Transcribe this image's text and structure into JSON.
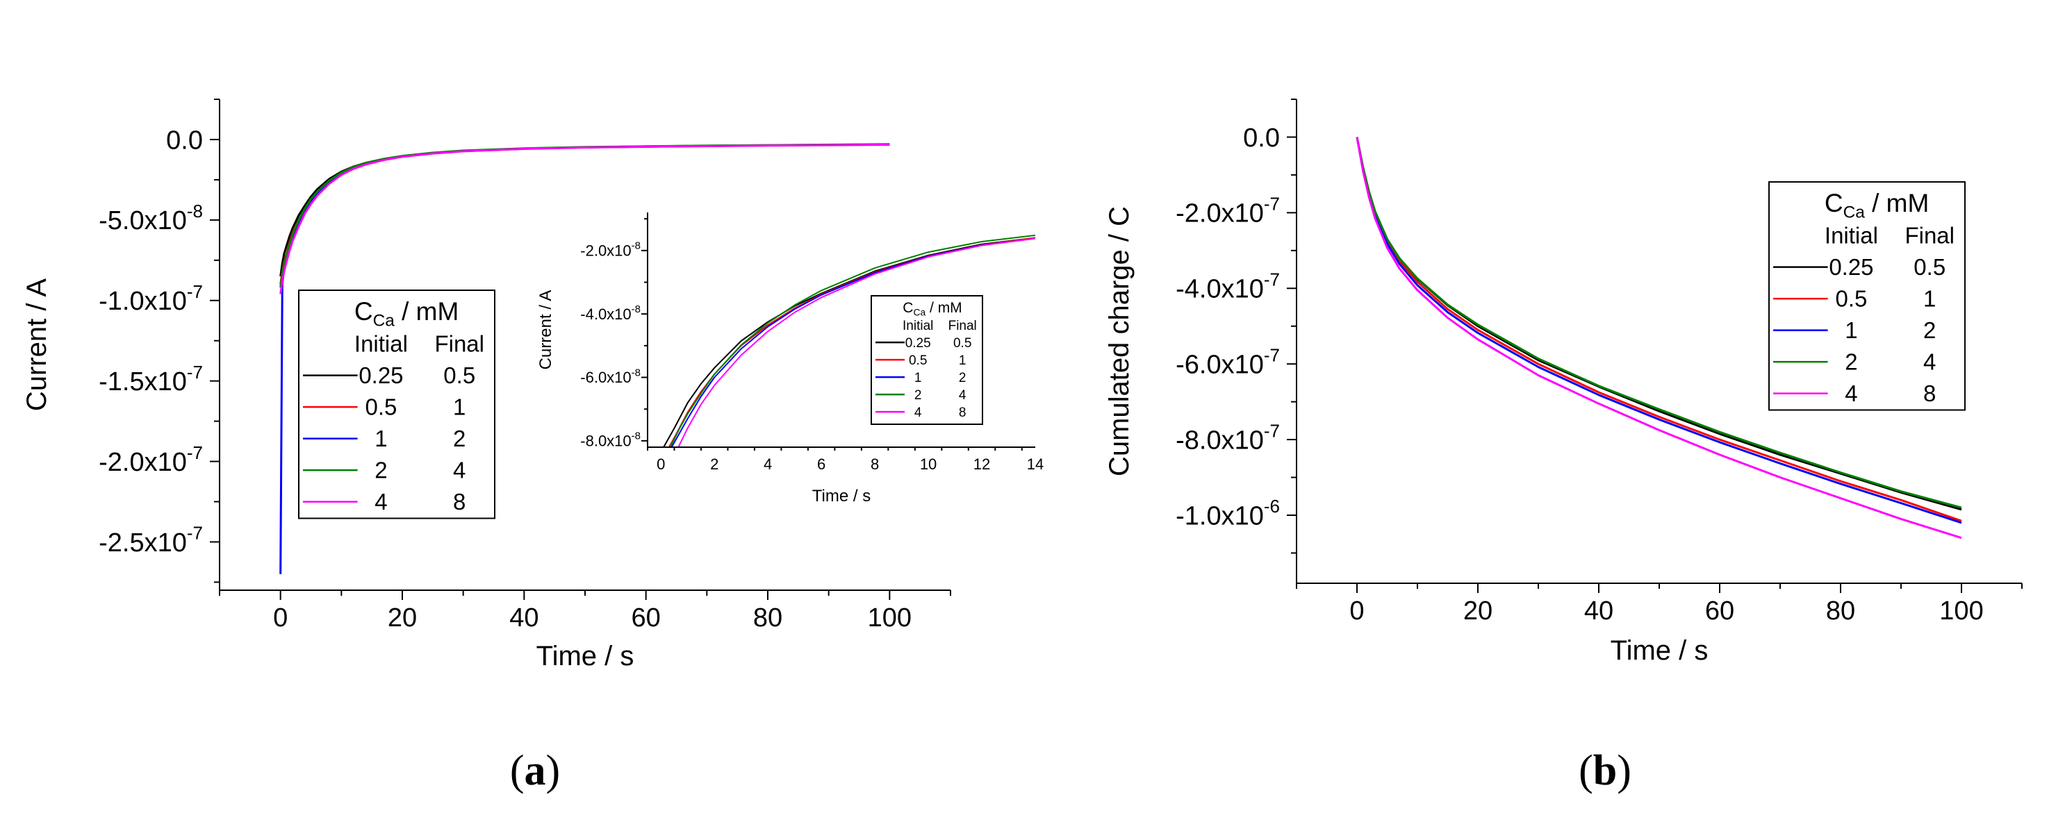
{
  "panels": {
    "a": {
      "label_open": "(",
      "label_letter": "a",
      "label_close": ")"
    },
    "b": {
      "label_open": "(",
      "label_letter": "b",
      "label_close": ")"
    }
  },
  "series_style": {
    "names": [
      "0.25 mM → 0.5 mM",
      "0.5 mM → 1 mM",
      "1 mM → 2 mM",
      "2 mM → 4 mM",
      "4 mM → 8 mM"
    ],
    "colors": [
      "#000000",
      "#ff0000",
      "#0000ff",
      "#008000",
      "#ff00ff"
    ]
  },
  "legend": {
    "title_main": "C",
    "title_sub": "Ca",
    "title_unit": " / mM",
    "col_initial": "Initial",
    "col_final": "Final",
    "initial": [
      "0.25",
      "0.5",
      "1",
      "2",
      "4"
    ],
    "final": [
      "0.5",
      "1",
      "2",
      "4",
      "8"
    ]
  },
  "chart_data": [
    {
      "id": "a-main",
      "type": "line",
      "title": "",
      "xlabel": "Time / s",
      "ylabel": "Current / A",
      "xlim": [
        -10,
        110
      ],
      "ylim": [
        -2.8e-07,
        2.5e-08
      ],
      "xticks": [
        0,
        20,
        40,
        60,
        80,
        100
      ],
      "xtick_labels": [
        "0",
        "20",
        "40",
        "60",
        "80",
        "100"
      ],
      "yticks": [
        0,
        -5e-08,
        -1e-07,
        -1.5e-07,
        -2e-07,
        -2.5e-07
      ],
      "ytick_labels": [
        {
          "m": "0.0",
          "e": ""
        },
        {
          "m": "-5.0x10",
          "e": "-8"
        },
        {
          "m": "-1.0x10",
          "e": "-7"
        },
        {
          "m": "-1.5x10",
          "e": "-7"
        },
        {
          "m": "-2.0x10",
          "e": "-7"
        },
        {
          "m": "-2.5x10",
          "e": "-7"
        }
      ],
      "x": [
        0,
        0.3,
        0.6,
        1,
        1.5,
        2,
        3,
        4,
        5,
        6,
        8,
        10,
        12,
        14,
        17,
        20,
        25,
        30,
        40,
        50,
        60,
        70,
        80,
        90,
        100
      ],
      "series": [
        {
          "name": "0.25 mM → 0.5 mM",
          "values": [
            -8.5e-08,
            -7.7e-08,
            -7.1e-08,
            -6.6e-08,
            -6e-08,
            -5.5e-08,
            -4.7e-08,
            -4.1e-08,
            -3.55e-08,
            -3.1e-08,
            -2.45e-08,
            -2e-08,
            -1.68e-08,
            -1.45e-08,
            -1.2e-08,
            -1.03e-08,
            -8.3e-09,
            -7e-09,
            -5.6e-09,
            -4.8e-09,
            -4.3e-09,
            -3.9e-09,
            -3.6e-09,
            -3.3e-09,
            -3e-09
          ]
        },
        {
          "name": "0.5 mM → 1 mM",
          "values": [
            -9e-08,
            -8.2e-08,
            -7.6e-08,
            -7.1e-08,
            -6.4e-08,
            -5.8e-08,
            -5e-08,
            -4.3e-08,
            -3.75e-08,
            -3.3e-08,
            -2.6e-08,
            -2.1e-08,
            -1.76e-08,
            -1.5e-08,
            -1.24e-08,
            -1.05e-08,
            -8.5e-09,
            -7.2e-09,
            -5.7e-09,
            -4.9e-09,
            -4.4e-09,
            -4e-09,
            -3.7e-09,
            -3.4e-09,
            -3.1e-09
          ]
        },
        {
          "name": "1 mM → 2 mM",
          "values": [
            -2.7e-07,
            -9e-08,
            -8e-08,
            -7.3e-08,
            -6.6e-08,
            -6e-08,
            -5.1e-08,
            -4.4e-08,
            -3.85e-08,
            -3.35e-08,
            -2.65e-08,
            -2.15e-08,
            -1.78e-08,
            -1.52e-08,
            -1.25e-08,
            -1.06e-08,
            -8.6e-09,
            -7.2e-09,
            -5.7e-09,
            -4.9e-09,
            -4.4e-09,
            -4e-09,
            -3.7e-09,
            -3.4e-09,
            -3.1e-09
          ]
        },
        {
          "name": "2 mM → 4 mM",
          "values": [
            -9.2e-08,
            -8.3e-08,
            -7.7e-08,
            -7.2e-08,
            -6.5e-08,
            -5.9e-08,
            -5e-08,
            -4.3e-08,
            -3.7e-08,
            -3.25e-08,
            -2.55e-08,
            -2.05e-08,
            -1.7e-08,
            -1.45e-08,
            -1.2e-08,
            -1.02e-08,
            -8.2e-09,
            -6.9e-09,
            -5.5e-09,
            -4.7e-09,
            -4.2e-09,
            -3.8e-09,
            -3.5e-09,
            -3.2e-09,
            -2.9e-09
          ]
        },
        {
          "name": "4 mM → 8 mM",
          "values": [
            -9.6e-08,
            -8.8e-08,
            -8.2e-08,
            -7.6e-08,
            -6.9e-08,
            -6.3e-08,
            -5.4e-08,
            -4.6e-08,
            -4e-08,
            -3.5e-08,
            -2.75e-08,
            -2.2e-08,
            -1.82e-08,
            -1.55e-08,
            -1.27e-08,
            -1.07e-08,
            -8.7e-09,
            -7.3e-09,
            -5.8e-09,
            -5e-09,
            -4.5e-09,
            -4.1e-09,
            -3.8e-09,
            -3.5e-09,
            -3.2e-09
          ]
        }
      ]
    },
    {
      "id": "a-inset",
      "type": "line",
      "title": "",
      "xlabel": "Time / s",
      "ylabel": "Current / A",
      "xlim": [
        -0.5,
        14
      ],
      "ylim": [
        -8.2e-08,
        -8e-09
      ],
      "xticks": [
        0,
        2,
        4,
        6,
        8,
        10,
        12,
        14
      ],
      "xtick_labels": [
        "0",
        "2",
        "4",
        "6",
        "8",
        "10",
        "12",
        "14"
      ],
      "yticks": [
        -2e-08,
        -4e-08,
        -6e-08,
        -8e-08
      ],
      "ytick_labels": [
        {
          "m": "-2.0x10",
          "e": "-8"
        },
        {
          "m": "-4.0x10",
          "e": "-8"
        },
        {
          "m": "-6.0x10",
          "e": "-8"
        },
        {
          "m": "-8.0x10",
          "e": "-8"
        }
      ],
      "series": [
        {
          "name": "0.25 mM → 0.5 mM",
          "x": [
            0.1,
            0.5,
            1,
            1.5,
            2,
            3,
            4,
            5,
            6,
            8,
            10,
            12,
            14
          ],
          "values": [
            -8.2e-08,
            -7.6e-08,
            -6.8e-08,
            -6.2e-08,
            -5.7e-08,
            -4.85e-08,
            -4.25e-08,
            -3.75e-08,
            -3.35e-08,
            -2.65e-08,
            -2.15e-08,
            -1.8e-08,
            -1.6e-08
          ]
        },
        {
          "name": "0.5 mM → 1 mM",
          "x": [
            0.3,
            0.5,
            1,
            1.5,
            2,
            3,
            4,
            5,
            6,
            8,
            10,
            12,
            14
          ],
          "values": [
            -8.2e-08,
            -7.9e-08,
            -7.1e-08,
            -6.45e-08,
            -5.9e-08,
            -5e-08,
            -4.35e-08,
            -3.82e-08,
            -3.38e-08,
            -2.68e-08,
            -2.17e-08,
            -1.82e-08,
            -1.6e-08
          ]
        },
        {
          "name": "1 mM → 2 mM",
          "x": [
            0.4,
            0.7,
            1,
            1.5,
            2,
            3,
            4,
            5,
            6,
            8,
            10,
            12,
            14
          ],
          "values": [
            -8.2e-08,
            -7.75e-08,
            -7.3e-08,
            -6.6e-08,
            -6e-08,
            -5.1e-08,
            -4.4e-08,
            -3.85e-08,
            -3.4e-08,
            -2.7e-08,
            -2.18e-08,
            -1.83e-08,
            -1.62e-08
          ]
        },
        {
          "name": "2 mM → 4 mM",
          "x": [
            0.35,
            0.7,
            1,
            1.5,
            2,
            3,
            4,
            5,
            6,
            8,
            10,
            12,
            14
          ],
          "values": [
            -8.2e-08,
            -7.6e-08,
            -7.15e-08,
            -6.5e-08,
            -5.9e-08,
            -4.98e-08,
            -4.28e-08,
            -3.72e-08,
            -3.26e-08,
            -2.55e-08,
            -2.05e-08,
            -1.72e-08,
            -1.52e-08
          ]
        },
        {
          "name": "4 mM → 8 mM",
          "x": [
            0.65,
            1,
            1.5,
            2,
            3,
            4,
            5,
            6,
            8,
            10,
            12,
            14
          ],
          "values": [
            -8.2e-08,
            -7.6e-08,
            -6.85e-08,
            -6.25e-08,
            -5.3e-08,
            -4.55e-08,
            -3.95e-08,
            -3.48e-08,
            -2.74e-08,
            -2.2e-08,
            -1.84e-08,
            -1.62e-08
          ]
        }
      ]
    },
    {
      "id": "b",
      "type": "line",
      "title": "",
      "xlabel": "Time / s",
      "ylabel": "Cumulated charge / C",
      "xlim": [
        -10,
        110
      ],
      "ylim": [
        -1.18e-06,
        1e-07
      ],
      "xticks": [
        0,
        20,
        40,
        60,
        80,
        100
      ],
      "xtick_labels": [
        "0",
        "20",
        "40",
        "60",
        "80",
        "100"
      ],
      "yticks": [
        0,
        -2e-07,
        -4e-07,
        -6e-07,
        -8e-07,
        -1e-06
      ],
      "ytick_labels": [
        {
          "m": "0.0",
          "e": ""
        },
        {
          "m": "-2.0x10",
          "e": "-7"
        },
        {
          "m": "-4.0x10",
          "e": "-7"
        },
        {
          "m": "-6.0x10",
          "e": "-7"
        },
        {
          "m": "-8.0x10",
          "e": "-7"
        },
        {
          "m": "-1.0x10",
          "e": "-6"
        }
      ],
      "x": [
        0,
        1,
        2,
        3,
        5,
        7,
        10,
        15,
        20,
        30,
        40,
        50,
        60,
        70,
        80,
        90,
        100
      ],
      "series": [
        {
          "name": "0.25 mM → 0.5 mM",
          "values": [
            0,
            -8e-08,
            -1.45e-07,
            -1.97e-07,
            -2.7e-07,
            -3.2e-07,
            -3.75e-07,
            -4.45e-07,
            -5e-07,
            -5.9e-07,
            -6.6e-07,
            -7.25e-07,
            -7.85e-07,
            -8.4e-07,
            -8.9e-07,
            -9.4e-07,
            -9.85e-07
          ]
        },
        {
          "name": "0.5 mM → 1 mM",
          "values": [
            0,
            -8.2e-08,
            -1.48e-07,
            -2e-07,
            -2.75e-07,
            -3.27e-07,
            -3.83e-07,
            -4.55e-07,
            -5.1e-07,
            -6e-07,
            -6.75e-07,
            -7.4e-07,
            -8e-07,
            -8.55e-07,
            -9.1e-07,
            -9.6e-07,
            -1.015e-06
          ]
        },
        {
          "name": "1 mM → 2 mM",
          "values": [
            0,
            -8.6e-08,
            -1.53e-07,
            -2.06e-07,
            -2.82e-07,
            -3.35e-07,
            -3.92e-07,
            -4.63e-07,
            -5.18e-07,
            -6.08e-07,
            -6.82e-07,
            -7.47e-07,
            -8.07e-07,
            -8.63e-07,
            -9.17e-07,
            -9.68e-07,
            -1.02e-06
          ]
        },
        {
          "name": "2 mM → 4 mM",
          "values": [
            0,
            -8e-08,
            -1.45e-07,
            -1.97e-07,
            -2.7e-07,
            -3.2e-07,
            -3.74e-07,
            -4.43e-07,
            -4.96e-07,
            -5.86e-07,
            -6.58e-07,
            -7.2e-07,
            -7.8e-07,
            -8.35e-07,
            -8.87e-07,
            -9.37e-07,
            -9.8e-07
          ]
        },
        {
          "name": "4 mM → 8 mM",
          "values": [
            0,
            -9e-08,
            -1.6e-07,
            -2.15e-07,
            -2.93e-07,
            -3.47e-07,
            -4.05e-07,
            -4.78e-07,
            -5.35e-07,
            -6.3e-07,
            -7.05e-07,
            -7.75e-07,
            -8.4e-07,
            -9e-07,
            -9.55e-07,
            -1.01e-06,
            -1.06e-06
          ]
        }
      ]
    }
  ]
}
